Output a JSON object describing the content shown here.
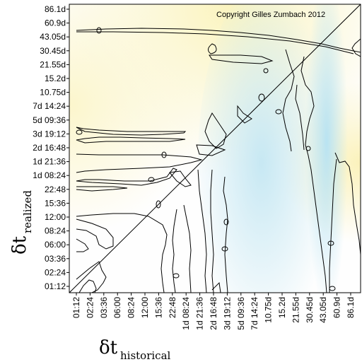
{
  "chart_data": {
    "type": "heatmap",
    "title": "",
    "annotation": "Copyright Gilles Zumbach 2012",
    "xlabel": {
      "symbol": "δt",
      "subscript": "historical"
    },
    "ylabel": {
      "symbol": "δt",
      "subscript": "realized"
    },
    "x_ticks": [
      "01:12",
      "02:24",
      "03:36",
      "06:00",
      "08:24",
      "12:00",
      "15:36",
      "22:48",
      "1d 08:24",
      "1d 21:36",
      "2d 16:48",
      "3d 19:12",
      "5d 09:36",
      "7d 14:24",
      "10.75d",
      "15.2d",
      "21.55d",
      "30.45d",
      "43.05d",
      "60.9d",
      "86.1d"
    ],
    "y_ticks": [
      "01:12",
      "02:24",
      "03:36",
      "06:00",
      "08:24",
      "12:00",
      "15:36",
      "22:48",
      "1d 08:24",
      "1d 21:36",
      "2d 16:48",
      "3d 19:12",
      "5d 09:36",
      "7d 14:24",
      "10.75d",
      "15.2d",
      "21.55d",
      "30.45d",
      "43.05d",
      "60.9d",
      "86.1d"
    ],
    "x_scale": "log",
    "y_scale": "log",
    "grid": false,
    "legend": "none",
    "diagonal": true,
    "colors": {
      "base": "#fefefe",
      "yellow": "#fbf5c2",
      "blue": "#c7e8f3",
      "contour": "#000000"
    }
  }
}
